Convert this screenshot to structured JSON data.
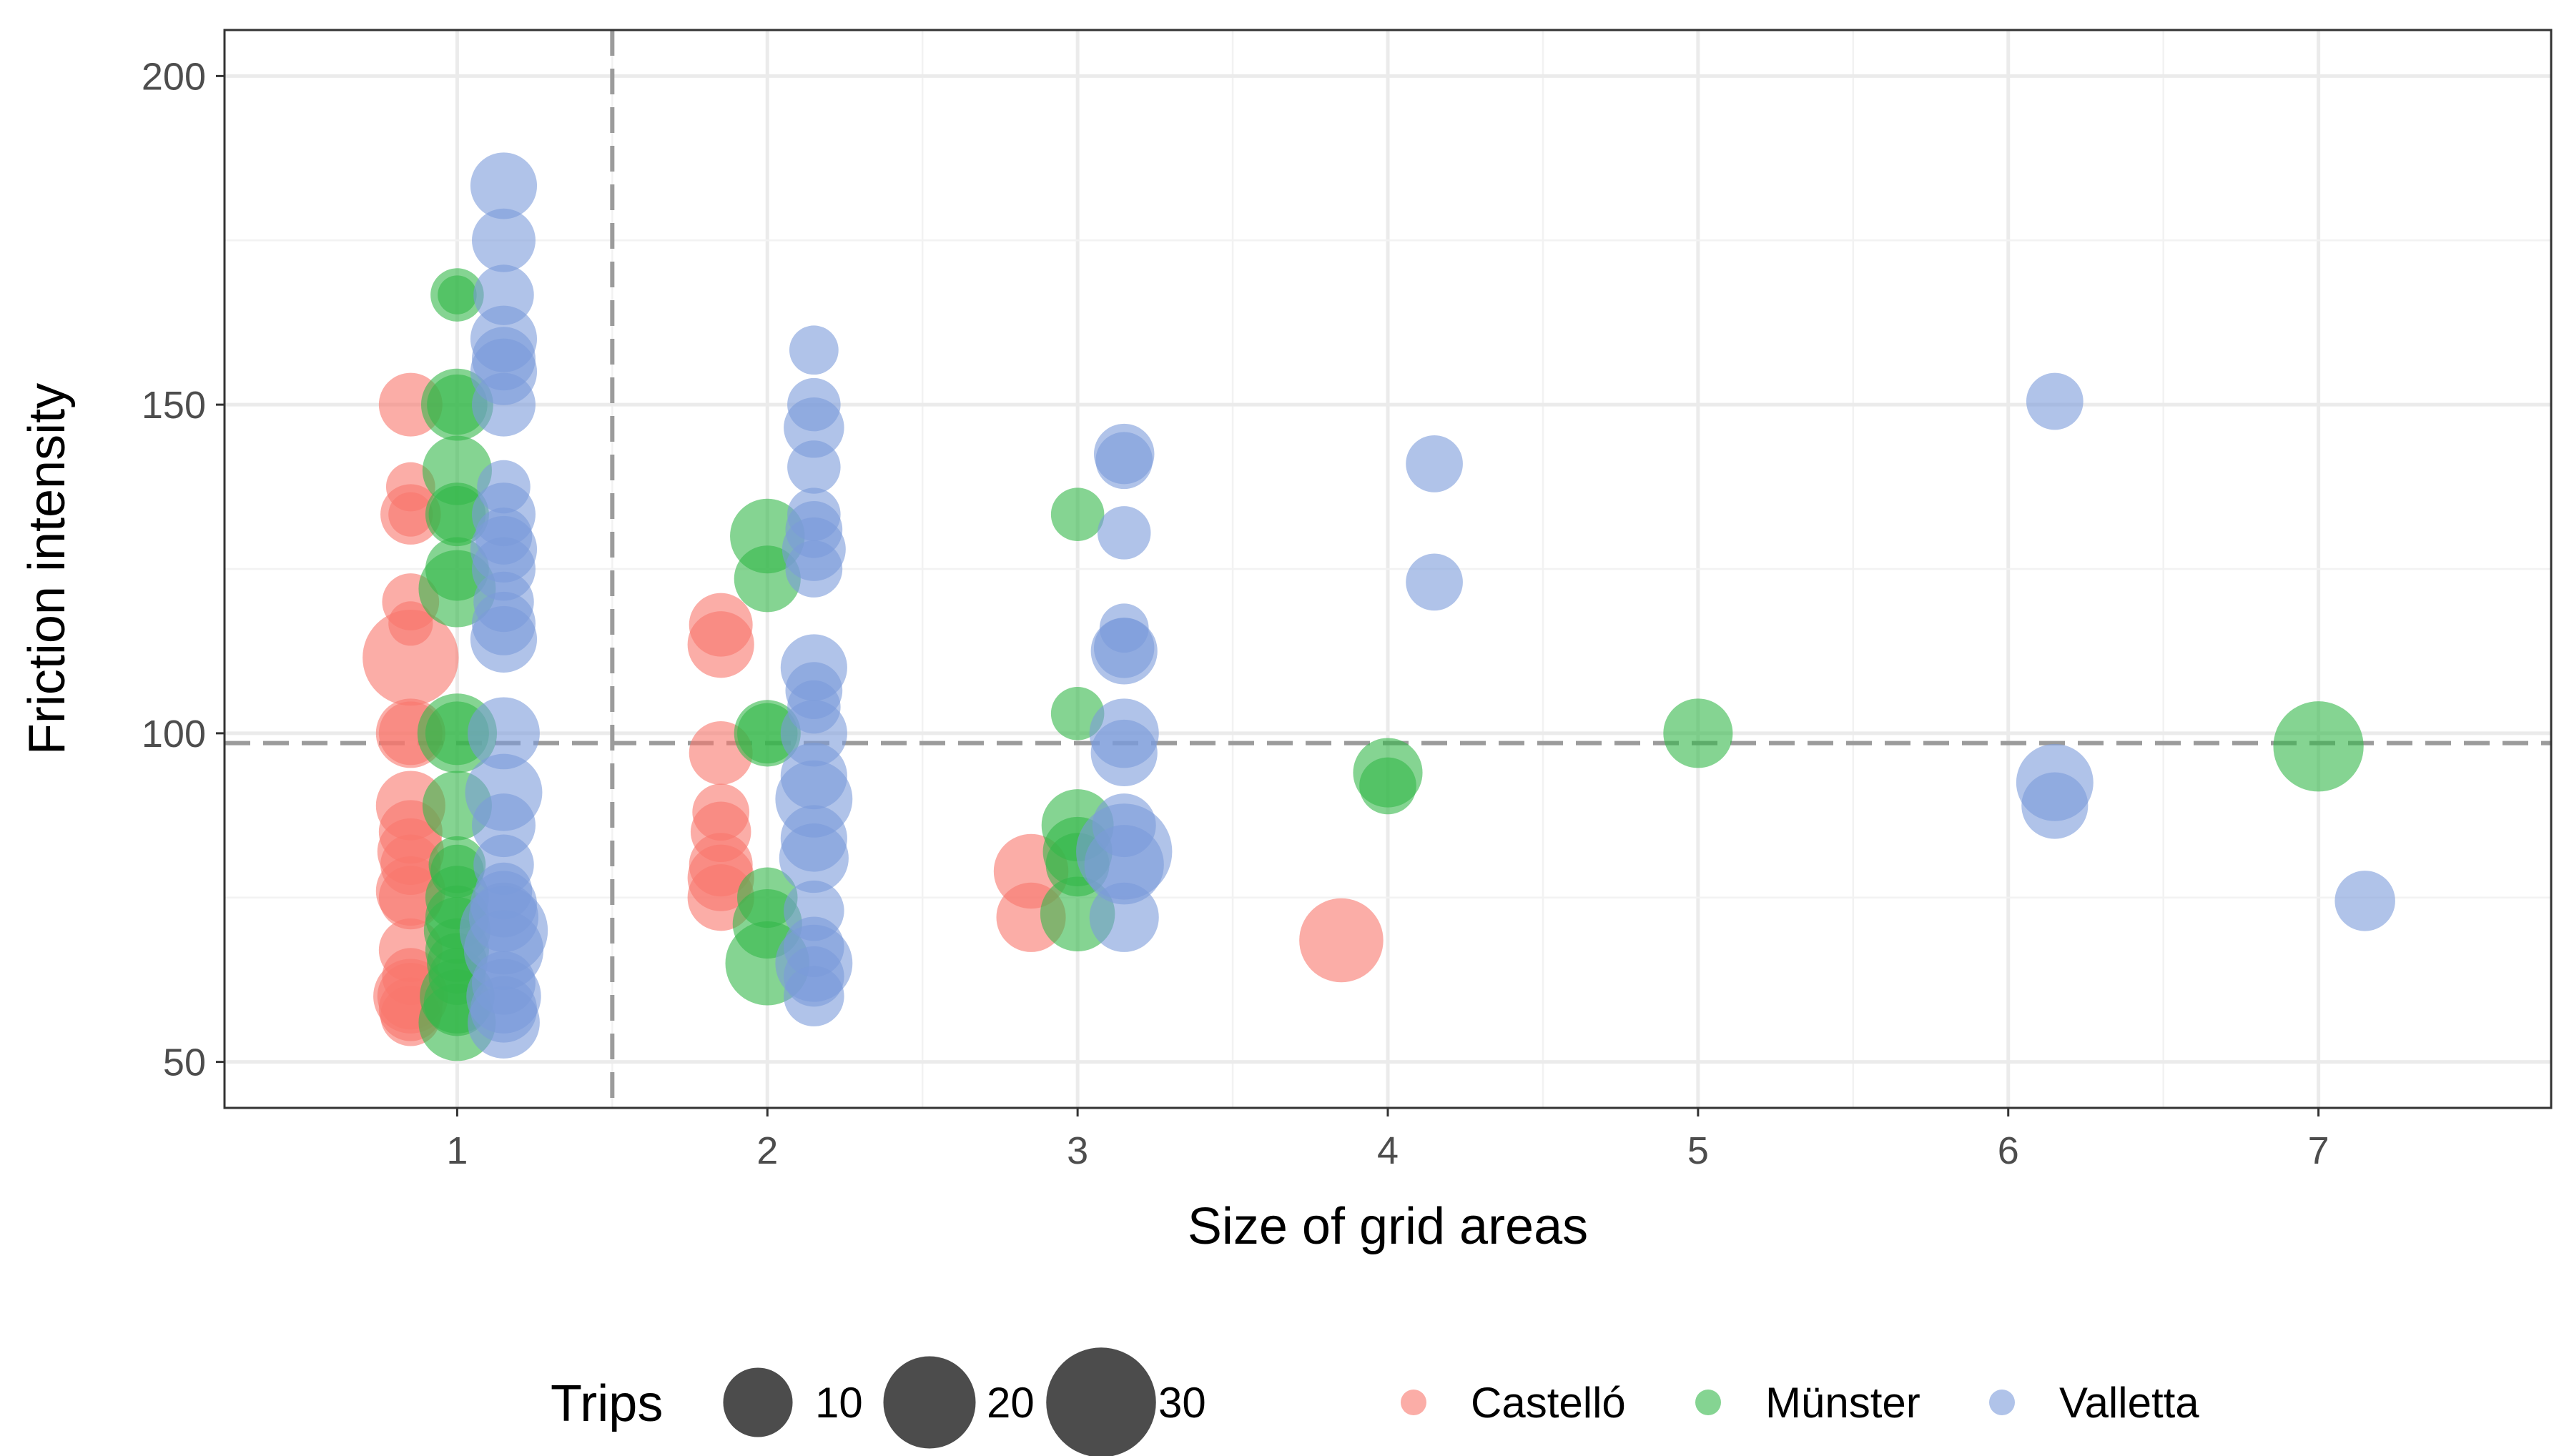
{
  "chart_data": {
    "type": "scatter",
    "title": "",
    "xlabel": "Size of grid areas",
    "ylabel": "Friction intensity",
    "xlim": [
      0.25,
      7.75
    ],
    "ylim": [
      43,
      207
    ],
    "x_ticks": [
      1,
      2,
      3,
      4,
      5,
      6,
      7
    ],
    "y_ticks": [
      50,
      100,
      150,
      200
    ],
    "x_tick_labels": [
      "1",
      "2",
      "3",
      "4",
      "5",
      "6",
      "7"
    ],
    "y_tick_labels": [
      "50",
      "100",
      "150",
      "200"
    ],
    "grid": true,
    "reference_lines": {
      "vertical_x": 1.5,
      "horizontal_y": 98.5
    },
    "size_legend": {
      "title": "Trips",
      "entries": [
        {
          "value": 10,
          "label": "10"
        },
        {
          "value": 20,
          "label": "20"
        },
        {
          "value": 30,
          "label": "30"
        }
      ]
    },
    "color_legend": [
      {
        "name": "Castelló",
        "color": "#F8766D"
      },
      {
        "name": "Münster",
        "color": "#33B84A"
      },
      {
        "name": "Valletta",
        "color": "#7B9BDA"
      }
    ],
    "series": [
      {
        "name": "Castelló",
        "color": "#F8766D",
        "offset": -0.15,
        "points": [
          [
            1,
            150,
            8
          ],
          [
            1,
            137.5,
            4
          ],
          [
            1,
            133.3,
            7
          ],
          [
            1,
            133.3,
            3
          ],
          [
            1,
            120,
            6
          ],
          [
            1,
            116.7,
            3
          ],
          [
            1,
            111.5,
            22
          ],
          [
            1,
            100,
            10
          ],
          [
            1,
            100,
            8
          ],
          [
            1,
            89,
            10
          ],
          [
            1,
            85,
            8
          ],
          [
            1,
            82,
            9
          ],
          [
            1,
            80,
            7
          ],
          [
            1,
            76,
            10
          ],
          [
            1,
            75,
            8
          ],
          [
            1,
            67,
            8
          ],
          [
            1,
            63,
            6
          ],
          [
            1,
            60,
            12
          ],
          [
            1,
            60,
            9
          ],
          [
            1,
            58,
            8
          ],
          [
            1,
            57,
            7
          ],
          [
            2,
            116.5,
            8
          ],
          [
            2,
            113.5,
            9
          ],
          [
            2,
            97,
            8
          ],
          [
            2,
            88,
            6
          ],
          [
            2,
            85,
            7
          ],
          [
            2,
            80,
            8
          ],
          [
            2,
            78,
            9
          ],
          [
            2,
            75,
            9
          ],
          [
            3,
            79,
            12
          ],
          [
            3,
            72,
            10
          ],
          [
            4,
            68.5,
            16
          ]
        ]
      },
      {
        "name": "Münster",
        "color": "#33B84A",
        "offset": 0,
        "points": [
          [
            1,
            166.7,
            5
          ],
          [
            1,
            166.7,
            2
          ],
          [
            1,
            150,
            11
          ],
          [
            1,
            150,
            7
          ],
          [
            1,
            140,
            10
          ],
          [
            1,
            133.3,
            8
          ],
          [
            1,
            133.3,
            6
          ],
          [
            1,
            125,
            8
          ],
          [
            1,
            122,
            13
          ],
          [
            1,
            100,
            14
          ],
          [
            1,
            100,
            8
          ],
          [
            1,
            89,
            10
          ],
          [
            1,
            80,
            6
          ],
          [
            1,
            79,
            5
          ],
          [
            1,
            75,
            8
          ],
          [
            1,
            72,
            8
          ],
          [
            1,
            70,
            9
          ],
          [
            1,
            67,
            8
          ],
          [
            1,
            65,
            7
          ],
          [
            1,
            63,
            6
          ],
          [
            1,
            60,
            12
          ],
          [
            1,
            59,
            9
          ],
          [
            1,
            56,
            13
          ],
          [
            2,
            130,
            12
          ],
          [
            2,
            123.5,
            9
          ],
          [
            2,
            100,
            9
          ],
          [
            2,
            100,
            7
          ],
          [
            2,
            75,
            7
          ],
          [
            2,
            71,
            10
          ],
          [
            2,
            65,
            16
          ],
          [
            3,
            133.3,
            5
          ],
          [
            3,
            103,
            5
          ],
          [
            3,
            86,
            11
          ],
          [
            3,
            82,
            10
          ],
          [
            3,
            80,
            8
          ],
          [
            3,
            72.5,
            12
          ],
          [
            4,
            94,
            10
          ],
          [
            4,
            92,
            6
          ],
          [
            5,
            100,
            10
          ],
          [
            7,
            98,
            19
          ]
        ]
      },
      {
        "name": "Valletta",
        "color": "#7B9BDA",
        "offset": 0.15,
        "points": [
          [
            1,
            183.3,
            9
          ],
          [
            1,
            175,
            8
          ],
          [
            1,
            166.7,
            7
          ],
          [
            1,
            160,
            9
          ],
          [
            1,
            157,
            8
          ],
          [
            1,
            155,
            9
          ],
          [
            1,
            150,
            8
          ],
          [
            1,
            137.5,
            5
          ],
          [
            1,
            133.3,
            8
          ],
          [
            1,
            130,
            6
          ],
          [
            1,
            128,
            9
          ],
          [
            1,
            125,
            8
          ],
          [
            1,
            120,
            7
          ],
          [
            1,
            116.7,
            8
          ],
          [
            1,
            114.3,
            9
          ],
          [
            1,
            100,
            11
          ],
          [
            1,
            91,
            13
          ],
          [
            1,
            86,
            8
          ],
          [
            1,
            80,
            7
          ],
          [
            1,
            76,
            6
          ],
          [
            1,
            74,
            9
          ],
          [
            1,
            72,
            10
          ],
          [
            1,
            70,
            18
          ],
          [
            1,
            67,
            14
          ],
          [
            1,
            62,
            8
          ],
          [
            1,
            60,
            12
          ],
          [
            1,
            58,
            9
          ],
          [
            1,
            56,
            11
          ],
          [
            2,
            158.3,
            4
          ],
          [
            2,
            150,
            5
          ],
          [
            2,
            146.5,
            7
          ],
          [
            2,
            140.5,
            5
          ],
          [
            2,
            133.3,
            5
          ],
          [
            2,
            131,
            6
          ],
          [
            2,
            128,
            8
          ],
          [
            2,
            125,
            6
          ],
          [
            2,
            110,
            9
          ],
          [
            2,
            106.5,
            6
          ],
          [
            2,
            104,
            5
          ],
          [
            2,
            100,
            9
          ],
          [
            2,
            93.5,
            9
          ],
          [
            2,
            90,
            13
          ],
          [
            2,
            84,
            9
          ],
          [
            2,
            81,
            10
          ],
          [
            2,
            73,
            7
          ],
          [
            2,
            67.5,
            7
          ],
          [
            2,
            65,
            13
          ],
          [
            2,
            63,
            7
          ],
          [
            2,
            60,
            7
          ],
          [
            3,
            142.5,
            7
          ],
          [
            3,
            141.5,
            6
          ],
          [
            3,
            130.5,
            5
          ],
          [
            3,
            116,
            4
          ],
          [
            3,
            113,
            7
          ],
          [
            3,
            112.5,
            9
          ],
          [
            3,
            100,
            10
          ],
          [
            3,
            97,
            9
          ],
          [
            3,
            86,
            8
          ],
          [
            3,
            82,
            22
          ],
          [
            3,
            80,
            14
          ],
          [
            3,
            72,
            10
          ],
          [
            4,
            141,
            6
          ],
          [
            4,
            123,
            6
          ],
          [
            6,
            150.5,
            6
          ],
          [
            6,
            92.5,
            13
          ],
          [
            6,
            89,
            9
          ],
          [
            7,
            74.5,
            7
          ]
        ]
      }
    ]
  }
}
